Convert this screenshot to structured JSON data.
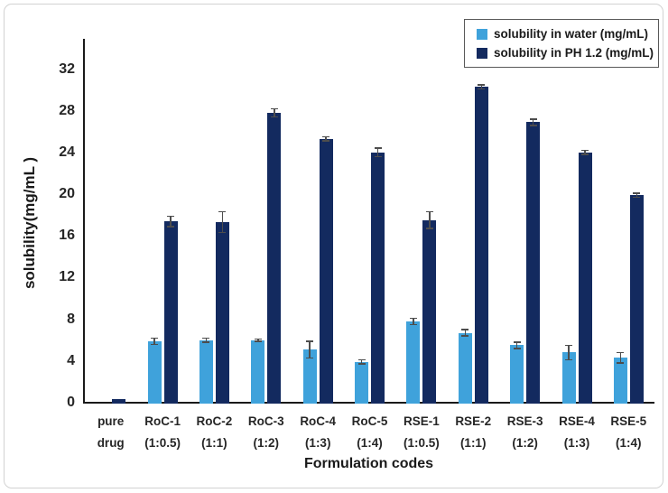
{
  "chart_data": {
    "type": "bar",
    "title": "",
    "xlabel": "Formulation codes",
    "ylabel": "solubility(mg/mL )",
    "categories": [
      "pure drug",
      "RoC-1 (1:0.5)",
      "RoC-2 (1:1)",
      "RoC-3 (1:2)",
      "RoC-4 (1:3)",
      "RoC-5 (1:4)",
      "RSE-1 (1:0.5)",
      "RSE-2 (1:1)",
      "RSE-3 (1:2)",
      "RSE-4 (1:3)",
      "RSE-5 (1:4)"
    ],
    "series": [
      {
        "key": "water",
        "name": "solubility in water (mg/mL)",
        "color": "#3fa2db",
        "values": [
          0,
          6.0,
          6.1,
          6.1,
          5.2,
          4.0,
          7.9,
          6.8,
          5.6,
          4.9,
          4.4
        ],
        "errors": [
          0,
          0.3,
          0.2,
          0.1,
          0.8,
          0.2,
          0.3,
          0.3,
          0.3,
          0.7,
          0.5
        ]
      },
      {
        "key": "ph12",
        "name": "solubility in PH 1.2 (mg/mL)",
        "color": "#132a5f",
        "values": [
          0.4,
          17.5,
          17.4,
          27.9,
          25.4,
          24.1,
          17.6,
          30.4,
          27.0,
          24.1,
          20.0
        ],
        "errors": [
          0,
          0.5,
          1.0,
          0.4,
          0.2,
          0.4,
          0.8,
          0.2,
          0.3,
          0.2,
          0.2
        ]
      }
    ],
    "ylim": [
      0,
      35
    ],
    "yticks": [
      0,
      4,
      8,
      12,
      16,
      20,
      24,
      28,
      32
    ],
    "grid": false,
    "legend_position": "top-right",
    "error_bar_color": "#4d4d4d",
    "axis_color": "#1a1a1a",
    "text_color": "#262626"
  }
}
